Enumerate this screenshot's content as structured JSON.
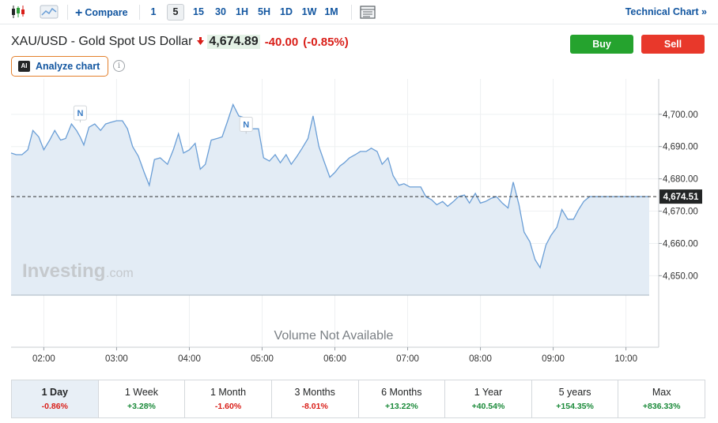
{
  "toolbar": {
    "compare_label": "Compare",
    "intervals": [
      "1",
      "5",
      "15",
      "30",
      "1H",
      "5H",
      "1D",
      "1W",
      "1M"
    ],
    "active_interval": "5",
    "technical_chart_label": "Technical Chart",
    "technical_chart_chevron": "»"
  },
  "instrument": {
    "name": "XAU/USD - Gold Spot US Dollar",
    "price": "4,674.89",
    "change": "-40.00",
    "change_pct": "(-0.85%)",
    "direction_arrow": "🡇"
  },
  "actions": {
    "buy_label": "Buy",
    "sell_label": "Sell"
  },
  "analyze": {
    "badge": "AI",
    "label": "Analyze chart",
    "info_glyph": "i"
  },
  "watermark": {
    "brand": "Investing",
    "suffix": ".com"
  },
  "chart_data": {
    "type": "area",
    "x_tick_labels": [
      "02:00",
      "03:00",
      "04:00",
      "05:00",
      "06:00",
      "07:00",
      "08:00",
      "09:00",
      "10:00"
    ],
    "x_range_hours": [
      1.55,
      10.45
    ],
    "y_ticks": [
      4650,
      4660,
      4670,
      4680,
      4690,
      4700
    ],
    "y_tick_labels": [
      "4,650.00",
      "4,660.00",
      "4,670.00",
      "4,680.00",
      "4,690.00",
      "4,700.00"
    ],
    "ylim": [
      4643,
      4709
    ],
    "current_value": 4674.51,
    "current_label": "4,674.51",
    "volume_text": "Volume Not Available",
    "news_markers": [
      {
        "label": "N",
        "x": 2.5,
        "y": 4696.5
      },
      {
        "label": "N",
        "x": 4.78,
        "y": 4693
      }
    ],
    "series": [
      {
        "x": [
          1.55,
          1.62,
          1.7,
          1.78,
          1.85,
          1.93,
          2.0,
          2.08,
          2.15,
          2.23,
          2.3,
          2.38,
          2.45,
          2.5,
          2.55,
          2.62,
          2.7,
          2.78,
          2.85,
          2.92,
          3.0,
          3.08,
          3.15,
          3.22,
          3.3,
          3.38,
          3.45,
          3.52,
          3.6,
          3.7,
          3.78,
          3.85,
          3.92,
          4.0,
          4.08,
          4.15,
          4.22,
          4.3,
          4.38,
          4.45,
          4.52,
          4.6,
          4.68,
          4.75,
          4.8,
          4.87,
          4.95,
          5.02,
          5.1,
          5.18,
          5.25,
          5.33,
          5.4,
          5.48,
          5.55,
          5.63,
          5.7,
          5.78,
          5.85,
          5.93,
          6.0,
          6.07,
          6.13,
          6.2,
          6.28,
          6.35,
          6.43,
          6.5,
          6.58,
          6.65,
          6.73,
          6.8,
          6.88,
          6.95,
          7.03,
          7.1,
          7.18,
          7.25,
          7.33,
          7.4,
          7.48,
          7.55,
          7.63,
          7.7,
          7.78,
          7.85,
          7.93,
          8.0,
          8.07,
          8.15,
          8.22,
          8.3,
          8.38,
          8.45,
          8.53,
          8.6,
          8.68,
          8.75,
          8.82,
          8.9,
          8.97,
          9.05,
          9.12,
          9.2,
          9.28,
          9.35,
          9.42,
          9.5,
          9.57,
          9.65,
          9.72,
          9.8,
          9.87,
          9.95,
          10.03,
          10.1,
          10.17,
          10.25,
          10.32
        ],
        "y": [
          4688,
          4687.5,
          4687.5,
          4689,
          4695,
          4693,
          4689,
          4692,
          4695,
          4692,
          4692.5,
          4697,
          4695,
          4693,
          4690.5,
          4696,
          4697,
          4695,
          4697,
          4697.5,
          4698,
          4698,
          4695.5,
          4690,
          4687,
          4682,
          4678,
          4686,
          4686.5,
          4684.5,
          4689,
          4694,
          4688,
          4689,
          4691,
          4683,
          4684.5,
          4692,
          4692.5,
          4693,
          4697.5,
          4703,
          4699.5,
          4699,
          4697,
          4695.5,
          4695.5,
          4686.5,
          4685.5,
          4687.5,
          4685,
          4687.5,
          4684.5,
          4687,
          4689.5,
          4692.5,
          4699.5,
          4690,
          4685.5,
          4680.5,
          4682,
          4684,
          4685,
          4686.5,
          4687.5,
          4688.5,
          4688.5,
          4689.5,
          4688.5,
          4684.5,
          4686.5,
          4681,
          4678,
          4678.5,
          4677.5,
          4677.5,
          4677.5,
          4674.5,
          4673.5,
          4672,
          4673,
          4671.5,
          4673,
          4674.5,
          4675,
          4672.5,
          4675.5,
          4672.5,
          4673,
          4674,
          4674.5,
          4672.5,
          4671,
          4679,
          4672,
          4663.5,
          4660.5,
          4655,
          4652.5,
          4659.5,
          4662.5,
          4665,
          4670.5,
          4667.5,
          4667.5,
          4670.5,
          4673,
          4674.5,
          4674.5,
          4674.5,
          4674.5,
          4674.5,
          4674.5,
          4674.5,
          4674.5,
          4674.5,
          4674.5,
          4674.5,
          4674.5
        ]
      }
    ],
    "colors": {
      "line": "#6a9ed6",
      "fill": "#e3ecf5",
      "grid": "#eef0f2"
    }
  },
  "periods": [
    {
      "label": "1 Day",
      "change": "-0.86%",
      "sign": "neg",
      "active": true
    },
    {
      "label": "1 Week",
      "change": "+3.28%",
      "sign": "pos",
      "active": false
    },
    {
      "label": "1 Month",
      "change": "-1.60%",
      "sign": "neg",
      "active": false
    },
    {
      "label": "3 Months",
      "change": "-8.01%",
      "sign": "neg",
      "active": false
    },
    {
      "label": "6 Months",
      "change": "+13.22%",
      "sign": "pos",
      "active": false
    },
    {
      "label": "1 Year",
      "change": "+40.54%",
      "sign": "pos",
      "active": false
    },
    {
      "label": "5 years",
      "change": "+154.35%",
      "sign": "pos",
      "active": false
    },
    {
      "label": "Max",
      "change": "+836.33%",
      "sign": "pos",
      "active": false
    }
  ]
}
